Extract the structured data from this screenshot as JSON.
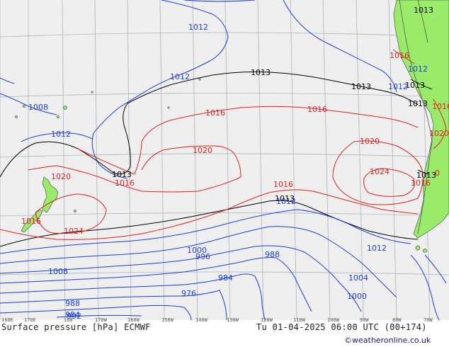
{
  "colors": {
    "ocean": "#efefef",
    "land": "#9aeb6a",
    "grid": "#a9b4c4",
    "isobar_low": "#1a3de0",
    "isobar_mid": "#000000",
    "isobar_high": "#e02020",
    "coast": "#555555"
  },
  "longitude_ticks": [
    "160E",
    "170E",
    "180",
    "170W",
    "160W",
    "150W",
    "140W",
    "130W",
    "120W",
    "110W",
    "100W",
    "90W",
    "80W",
    "70W"
  ],
  "isobar_labels": [
    {
      "id": "b1012-top",
      "value": "1012",
      "level": "low"
    },
    {
      "id": "b1012-mid",
      "value": "1012",
      "level": "low"
    },
    {
      "id": "b1008",
      "value": "1008",
      "level": "low"
    },
    {
      "id": "b1012-left",
      "value": "1012",
      "level": "low"
    },
    {
      "id": "b1012-right",
      "value": "1012",
      "level": "low"
    },
    {
      "id": "b1012-sa",
      "value": "1012",
      "level": "low"
    },
    {
      "id": "b1012-south",
      "value": "1012",
      "level": "low"
    },
    {
      "id": "b1012-se",
      "value": "1012",
      "level": "low"
    },
    {
      "id": "b1008-south",
      "value": "1008",
      "level": "low"
    },
    {
      "id": "b1004",
      "value": "1004",
      "level": "low"
    },
    {
      "id": "b1000",
      "value": "1000",
      "level": "low"
    },
    {
      "id": "b1000-se",
      "value": "1000",
      "level": "low"
    },
    {
      "id": "b996",
      "value": "996",
      "level": "low"
    },
    {
      "id": "b992",
      "value": "992",
      "level": "low"
    },
    {
      "id": "b988",
      "value": "988",
      "level": "low"
    },
    {
      "id": "b988-sw",
      "value": "988",
      "level": "low"
    },
    {
      "id": "b984",
      "value": "984",
      "level": "low"
    },
    {
      "id": "b984-sw",
      "value": "984",
      "level": "low"
    },
    {
      "id": "b976",
      "value": "976",
      "level": "low"
    },
    {
      "id": "k1013-top",
      "value": "1013",
      "level": "mid"
    },
    {
      "id": "k1013-right",
      "value": "1013",
      "level": "mid"
    },
    {
      "id": "k1013-ne",
      "value": "1013",
      "level": "mid"
    },
    {
      "id": "k1013-sa",
      "value": "1013",
      "level": "mid"
    },
    {
      "id": "k1013-sa2",
      "value": "1013",
      "level": "mid"
    },
    {
      "id": "k1013-left",
      "value": "1013",
      "level": "mid"
    },
    {
      "id": "k1013-south",
      "value": "1013",
      "level": "mid"
    },
    {
      "id": "k1013-chile",
      "value": "1013",
      "level": "mid"
    },
    {
      "id": "r1016-a",
      "value": "1016",
      "level": "high"
    },
    {
      "id": "r1016-b",
      "value": "1016",
      "level": "high"
    },
    {
      "id": "r1016-c",
      "value": "1016",
      "level": "high"
    },
    {
      "id": "r1016-d",
      "value": "1016",
      "level": "high"
    },
    {
      "id": "r1016-nz",
      "value": "1016",
      "level": "high"
    },
    {
      "id": "r1016-sa",
      "value": "1016",
      "level": "high"
    },
    {
      "id": "r1016-chile",
      "value": "1016",
      "level": "high"
    },
    {
      "id": "r1016-sa2",
      "value": "1016",
      "level": "high"
    },
    {
      "id": "r1020-a",
      "value": "1020",
      "level": "high"
    },
    {
      "id": "r1020-b",
      "value": "1020",
      "level": "high"
    },
    {
      "id": "r1020-c",
      "value": "1020",
      "level": "high"
    },
    {
      "id": "r1020-sa",
      "value": "1020",
      "level": "high"
    },
    {
      "id": "r1024-a",
      "value": "1024",
      "level": "high"
    },
    {
      "id": "r1024-b",
      "value": "1024",
      "level": "high"
    },
    {
      "id": "r1020-edge",
      "value": "0",
      "level": "high"
    }
  ],
  "footer": {
    "title": "Surface pressure [hPa] ECMWF",
    "valid_time": "Tu 01-04-2025 06:00 UTC (00+174)",
    "credit": "©weatheronline.co.uk"
  }
}
